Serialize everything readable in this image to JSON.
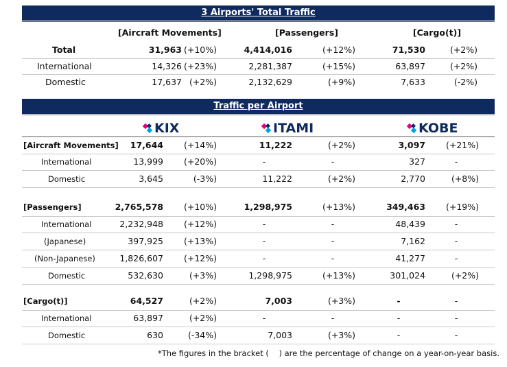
{
  "total_section": {
    "title": "3 Airports' Total Traffic",
    "headers": {
      "movements": "[Aircraft Movements]",
      "passengers": "[Passengers]",
      "cargo": "[Cargo(t)]"
    },
    "rows": [
      {
        "label": "Total",
        "mv": "31,963",
        "mv_pct": "(+10%)",
        "px": "4,414,016",
        "px_pct": "(+12%)",
        "cg": "71,530",
        "cg_pct": "(+2%)"
      },
      {
        "label": "International",
        "mv": "14,326",
        "mv_pct": "(+23%)",
        "px": "2,281,387",
        "px_pct": "(+15%)",
        "cg": "63,897",
        "cg_pct": "(+2%)"
      },
      {
        "label": "Domestic",
        "mv": "17,637",
        "mv_pct": "(+2%)",
        "px": "2,132,629",
        "px_pct": "(+9%)",
        "cg": "7,633",
        "cg_pct": "(-2%)"
      }
    ]
  },
  "airport_section": {
    "title": "Traffic per Airport",
    "logos": {
      "kix": "KIX",
      "itami": "ITAMI",
      "kobe": "KOBE"
    },
    "brand_colors": {
      "pink": "#e4007f",
      "blue": "#00a0e9",
      "navy": "#0f2a5e"
    },
    "rows": [
      {
        "label": "[Aircraft Movements]",
        "kix": "17,644",
        "kix_pct": "(+14%)",
        "itm": "11,222",
        "itm_pct": "(+2%)",
        "kob": "3,097",
        "kob_pct": "(+21%)"
      },
      {
        "label": "International",
        "kix": "13,999",
        "kix_pct": "(+20%)",
        "itm": "-",
        "itm_pct": "-",
        "kob": "327",
        "kob_pct": "-"
      },
      {
        "label": "Domestic",
        "kix": "3,645",
        "kix_pct": "(-3%)",
        "itm": "11,222",
        "itm_pct": "(+2%)",
        "kob": "2,770",
        "kob_pct": "(+8%)"
      },
      {
        "label": "[Passengers]",
        "kix": "2,765,578",
        "kix_pct": "(+10%)",
        "itm": "1,298,975",
        "itm_pct": "(+13%)",
        "kob": "349,463",
        "kob_pct": "(+19%)"
      },
      {
        "label": "International",
        "kix": "2,232,948",
        "kix_pct": "(+12%)",
        "itm": "-",
        "itm_pct": "-",
        "kob": "48,439",
        "kob_pct": "-"
      },
      {
        "label": "(Japanese)",
        "kix": "397,925",
        "kix_pct": "(+13%)",
        "itm": "-",
        "itm_pct": "-",
        "kob": "7,162",
        "kob_pct": "-"
      },
      {
        "label": "(Non-Japanese)",
        "kix": "1,826,607",
        "kix_pct": "(+12%)",
        "itm": "-",
        "itm_pct": "-",
        "kob": "41,277",
        "kob_pct": "-"
      },
      {
        "label": "Domestic",
        "kix": "532,630",
        "kix_pct": "(+3%)",
        "itm": "1,298,975",
        "itm_pct": "(+13%)",
        "kob": "301,024",
        "kob_pct": "(+2%)"
      },
      {
        "label": "[Cargo(t)]",
        "kix": "64,527",
        "kix_pct": "(+2%)",
        "itm": "7,003",
        "itm_pct": "(+3%)",
        "kob": "-",
        "kob_pct": "-"
      },
      {
        "label": "International",
        "kix": "63,897",
        "kix_pct": "(+2%)",
        "itm": "-",
        "itm_pct": "-",
        "kob": "-",
        "kob_pct": "-"
      },
      {
        "label": "Domestic",
        "kix": "630",
        "kix_pct": "(-34%)",
        "itm": "7,003",
        "itm_pct": "(+3%)",
        "kob": "-",
        "kob_pct": "-"
      }
    ]
  },
  "footnote": "*The figures in the bracket (    ) are the percentage of change on a year-on-year basis."
}
